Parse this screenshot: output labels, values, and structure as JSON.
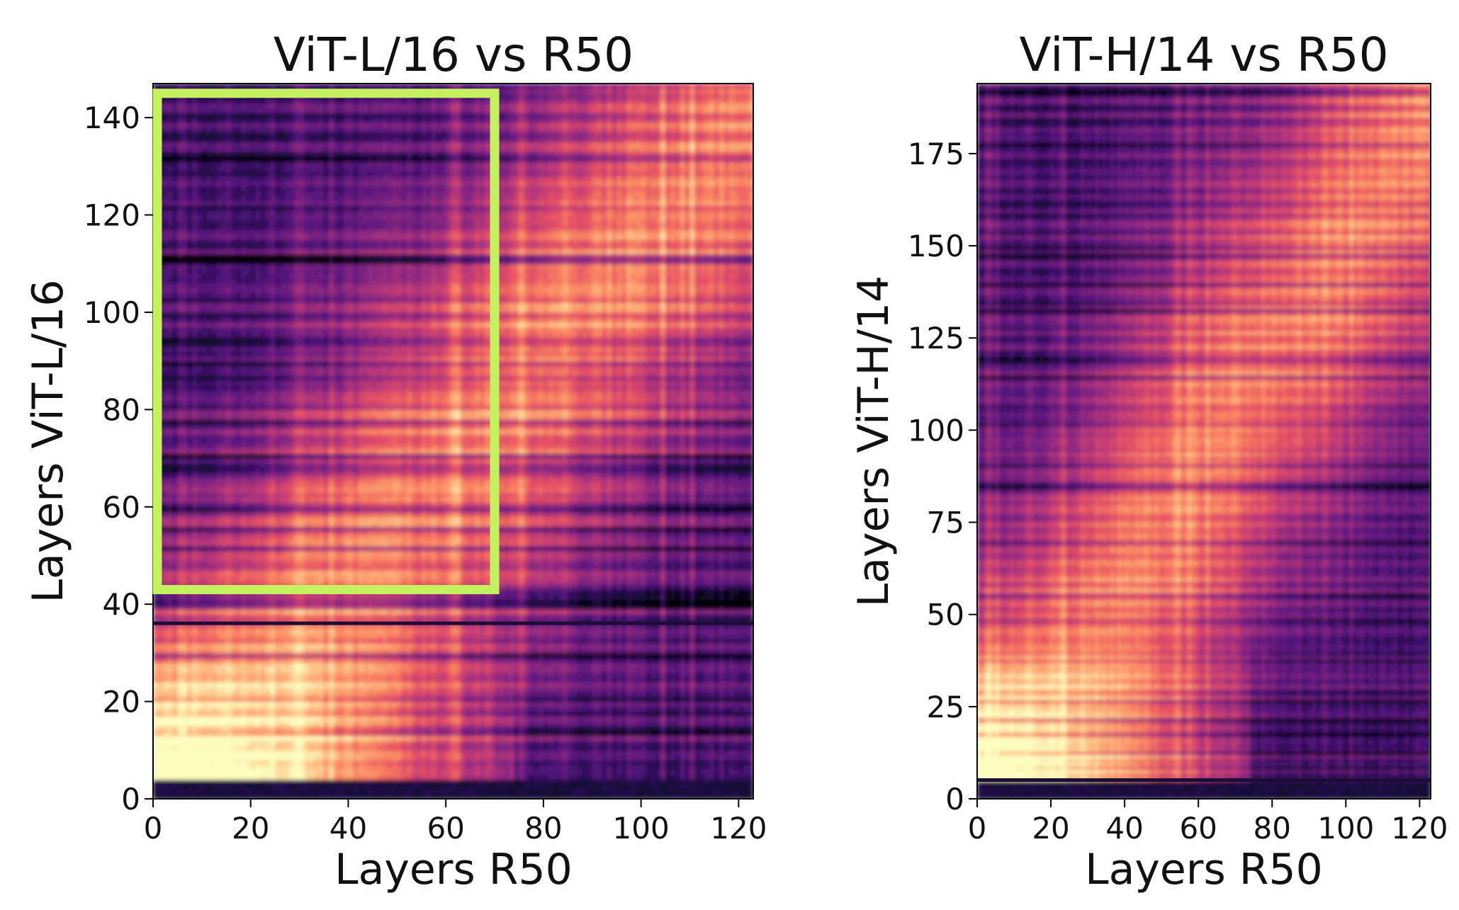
{
  "chart_data": [
    {
      "type": "heatmap",
      "title": "ViT-L/16 vs R50",
      "xlabel": "Layers R50",
      "ylabel": "Layers ViT-L/16",
      "xlim": [
        0,
        123
      ],
      "ylim": [
        0,
        147
      ],
      "xticks": [
        0,
        20,
        40,
        60,
        80,
        100,
        120
      ],
      "yticks": [
        0,
        20,
        40,
        60,
        80,
        100,
        120,
        140
      ],
      "colormap": "magma",
      "highlight_box": {
        "x_range": [
          0,
          70
        ],
        "y_range": [
          43,
          145
        ],
        "color": "#c4f25f"
      },
      "dark_rows": [
        36
      ]
    },
    {
      "type": "heatmap",
      "title": "ViT-H/14 vs R50",
      "xlabel": "Layers R50",
      "ylabel": "Layers ViT-H/14",
      "xlim": [
        0,
        123
      ],
      "ylim": [
        0,
        194
      ],
      "xticks": [
        0,
        20,
        40,
        60,
        80,
        100,
        120
      ],
      "yticks": [
        0,
        25,
        50,
        75,
        100,
        125,
        150,
        175
      ],
      "colormap": "magma",
      "dark_rows": [
        5
      ]
    }
  ]
}
